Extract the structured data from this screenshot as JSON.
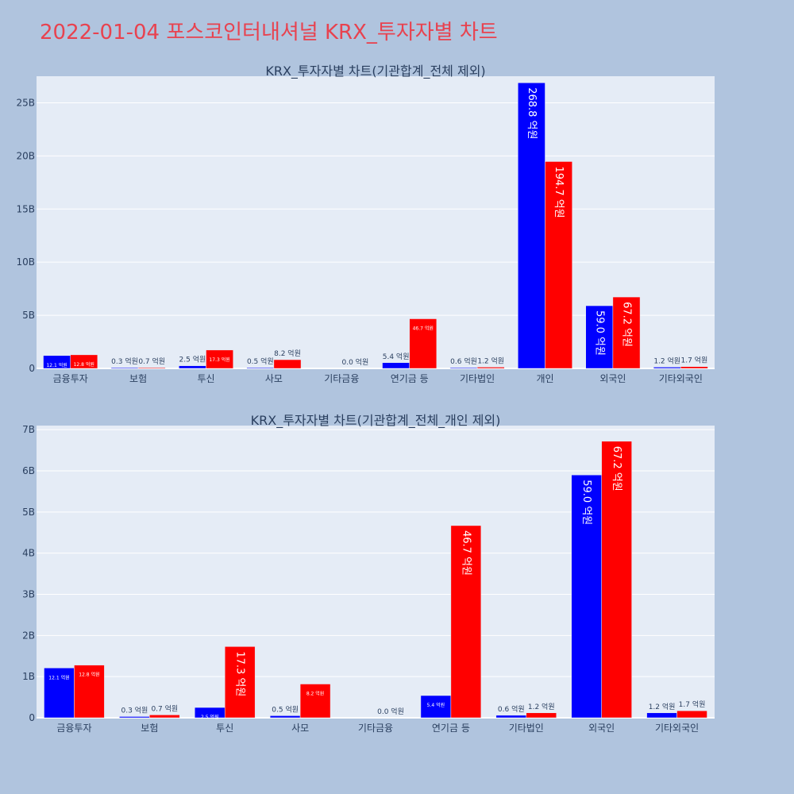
{
  "page": {
    "title": "2022-01-04 포스코인터내셔널 KRX_투자자별 차트"
  },
  "colors": {
    "series1": "#0000ff",
    "series2": "#ff0000",
    "plot_bg": "#e5ecf6",
    "paper_bg": "#b0c4de",
    "title": "#e8424f",
    "text": "#2a3f5f"
  },
  "chart_data": [
    {
      "type": "bar",
      "title": "KRX_투자자별 차트(기관합계_전체 제외)",
      "categories": [
        "금융투자",
        "보험",
        "투신",
        "사모",
        "기타금융",
        "연기금 등",
        "기타법인",
        "개인",
        "외국인",
        "기타외국인"
      ],
      "series": [
        {
          "values": [
            1.21,
            0.03,
            0.25,
            0.05,
            0.0,
            0.54,
            0.06,
            26.88,
            5.9,
            0.12
          ],
          "labels": [
            "12.1 억원",
            "0.3 억원",
            "2.5 억원",
            "0.5 억원",
            "",
            "5.4 억원",
            "0.6 억원",
            "268.8 억원",
            "59.0 억원",
            "1.2 억원"
          ]
        },
        {
          "values": [
            1.28,
            0.07,
            1.73,
            0.82,
            0.0,
            4.67,
            0.12,
            19.47,
            6.72,
            0.17
          ],
          "labels": [
            "12.8 억원",
            "0.7 억원",
            "17.3 억원",
            "8.2 억원",
            "0.0 억원",
            "46.7 억원",
            "1.2 억원",
            "194.7 억원",
            "67.2 억원",
            "1.7 억원"
          ]
        }
      ],
      "yticks": [
        0,
        5,
        10,
        15,
        20,
        25
      ],
      "ytick_labels": [
        "0",
        "5B",
        "10B",
        "15B",
        "20B",
        "25B"
      ],
      "ylim": [
        0,
        27.5
      ],
      "grid": true,
      "legend": "none"
    },
    {
      "type": "bar",
      "title": "KRX_투자자별 차트(기관합계_전체_개인 제외)",
      "categories": [
        "금융투자",
        "보험",
        "투신",
        "사모",
        "기타금융",
        "연기금 등",
        "기타법인",
        "외국인",
        "기타외국인"
      ],
      "series": [
        {
          "values": [
            1.21,
            0.03,
            0.25,
            0.05,
            0.0,
            0.54,
            0.06,
            5.9,
            0.12
          ],
          "labels": [
            "12.1 억원",
            "0.3 억원",
            "2.5 억원",
            "0.5 억원",
            "",
            "5.4 억원",
            "0.6 억원",
            "59.0 억원",
            "1.2 억원"
          ]
        },
        {
          "values": [
            1.28,
            0.07,
            1.73,
            0.82,
            0.0,
            4.67,
            0.12,
            6.72,
            0.17
          ],
          "labels": [
            "12.8 억원",
            "0.7 억원",
            "17.3 억원",
            "8.2 억원",
            "0.0 억원",
            "46.7 억원",
            "1.2 억원",
            "67.2 억원",
            "1.7 억원"
          ]
        }
      ],
      "yticks": [
        0,
        1,
        2,
        3,
        4,
        5,
        6,
        7
      ],
      "ytick_labels": [
        "0",
        "1B",
        "2B",
        "3B",
        "4B",
        "5B",
        "6B",
        "7B"
      ],
      "ylim": [
        0,
        7.1
      ],
      "grid": true,
      "legend": "none"
    }
  ]
}
